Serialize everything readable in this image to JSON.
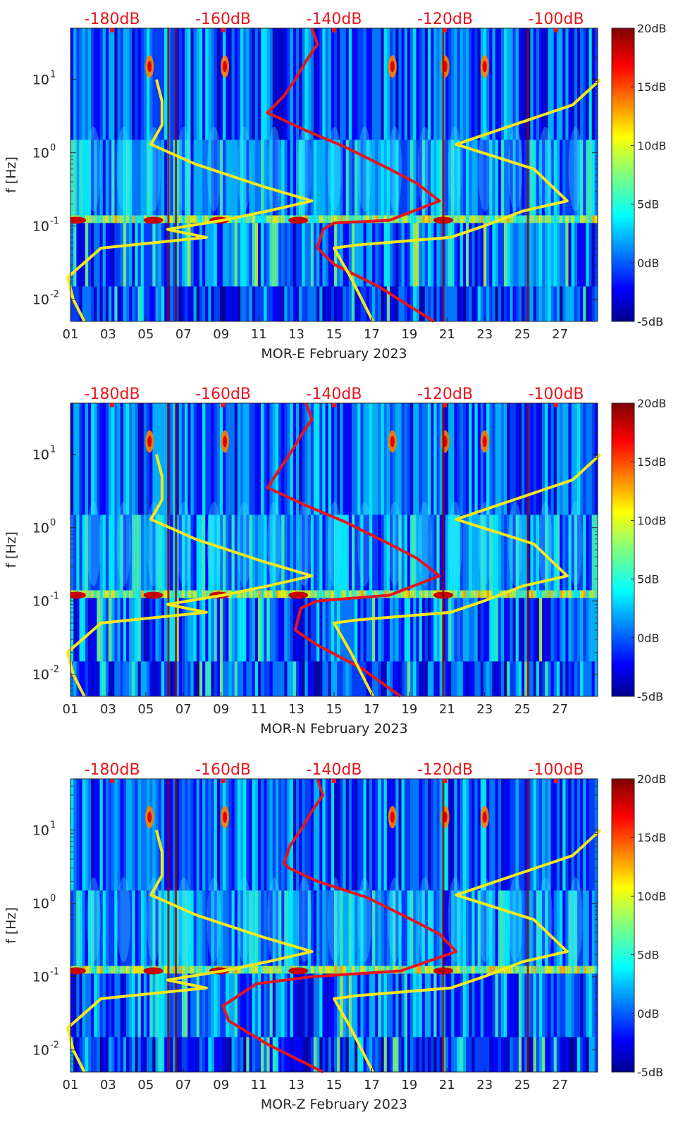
{
  "chart_data": [
    {
      "type": "heatmap",
      "title": "MOR-E February 2023",
      "xlabel": "MOR-E February 2023",
      "ylabel": "f [Hz]",
      "x_ticks": [
        "01",
        "03",
        "05",
        "07",
        "09",
        "11",
        "13",
        "15",
        "17",
        "19",
        "21",
        "23",
        "25",
        "27"
      ],
      "x_range_days": [
        1,
        29
      ],
      "y_scale": "log",
      "y_ticks": [
        0.01,
        0.1,
        1,
        10
      ],
      "y_range_hz": [
        0.005,
        50
      ],
      "top_axis_ticks": [
        "-180dB",
        "-160dB",
        "-140dB",
        "-120dB",
        "-100dB"
      ],
      "top_axis_range_db": [
        -187.5,
        -92.5
      ],
      "colorbar": {
        "label_ticks": [
          "20dB",
          "15dB",
          "10dB",
          "5dB",
          "0dB",
          "-5dB"
        ],
        "range_db": [
          -5,
          20
        ],
        "colormap": "jet"
      },
      "series": [
        {
          "name": "red PSD curve",
          "color": "#e8141c",
          "points_db_hz": [
            [
              -144,
              50
            ],
            [
              -143,
              30
            ],
            [
              -145,
              18
            ],
            [
              -147,
              10
            ],
            [
              -149,
              6
            ],
            [
              -152,
              3.5
            ],
            [
              -150,
              3
            ],
            [
              -145,
              2
            ],
            [
              -138,
              1.2
            ],
            [
              -130,
              0.6
            ],
            [
              -125,
              0.38
            ],
            [
              -121,
              0.22
            ],
            [
              -130,
              0.12
            ],
            [
              -140,
              0.11
            ],
            [
              -142,
              0.09
            ],
            [
              -143,
              0.05
            ],
            [
              -140,
              0.03
            ],
            [
              -132,
              0.015
            ],
            [
              -122,
              0.005
            ]
          ]
        },
        {
          "name": "yellow model curve 1",
          "color": "#f5e81c",
          "points_db_hz": [
            [
              -172,
              10
            ],
            [
              -171,
              5
            ],
            [
              -171,
              2.4
            ],
            [
              -173,
              1.3
            ],
            [
              -165,
              0.7
            ],
            [
              -153,
              0.35
            ],
            [
              -144,
              0.22
            ],
            [
              -152,
              0.16
            ],
            [
              -160,
              0.12
            ],
            [
              -170,
              0.09
            ],
            [
              -163,
              0.07
            ],
            [
              -182,
              0.05
            ],
            [
              -188,
              0.02
            ],
            [
              -187,
              0.01
            ],
            [
              -185,
              0.005
            ]
          ]
        },
        {
          "name": "yellow model curve 2",
          "color": "#f5e81c",
          "points_db_hz": [
            [
              -92,
              10
            ],
            [
              -97,
              4.5
            ],
            [
              -118,
              1.3
            ],
            [
              -104,
              0.6
            ],
            [
              -98,
              0.22
            ],
            [
              -106,
              0.16
            ],
            [
              -113,
              0.1
            ],
            [
              -119,
              0.07
            ],
            [
              -136,
              0.055
            ],
            [
              -140,
              0.05
            ],
            [
              -137,
              0.02
            ],
            [
              -133,
              0.005
            ]
          ]
        }
      ]
    },
    {
      "type": "heatmap",
      "title": "MOR-N February 2023",
      "xlabel": "MOR-N February 2023",
      "ylabel": "f [Hz]",
      "x_ticks": [
        "01",
        "03",
        "05",
        "07",
        "09",
        "11",
        "13",
        "15",
        "17",
        "19",
        "21",
        "23",
        "25",
        "27"
      ],
      "x_range_days": [
        1,
        29
      ],
      "y_scale": "log",
      "y_ticks": [
        0.01,
        0.1,
        1,
        10
      ],
      "y_range_hz": [
        0.005,
        50
      ],
      "top_axis_ticks": [
        "-180dB",
        "-160dB",
        "-140dB",
        "-120dB",
        "-100dB"
      ],
      "top_axis_range_db": [
        -187.5,
        -92.5
      ],
      "colorbar": {
        "label_ticks": [
          "20dB",
          "15dB",
          "10dB",
          "5dB",
          "0dB",
          "-5dB"
        ],
        "range_db": [
          -5,
          20
        ],
        "colormap": "jet"
      },
      "series": [
        {
          "name": "red PSD curve",
          "color": "#e8141c",
          "points_db_hz": [
            [
              -145,
              50
            ],
            [
              -144,
              30
            ],
            [
              -146,
              18
            ],
            [
              -148,
              10
            ],
            [
              -150,
              6
            ],
            [
              -152,
              3.5
            ],
            [
              -150,
              3
            ],
            [
              -145,
              2
            ],
            [
              -138,
              1.2
            ],
            [
              -130,
              0.6
            ],
            [
              -125,
              0.38
            ],
            [
              -121,
              0.22
            ],
            [
              -130,
              0.12
            ],
            [
              -143,
              0.1
            ],
            [
              -146,
              0.08
            ],
            [
              -147,
              0.04
            ],
            [
              -143,
              0.025
            ],
            [
              -135,
              0.012
            ],
            [
              -128,
              0.005
            ]
          ]
        },
        {
          "name": "yellow model curve 1",
          "color": "#f5e81c",
          "points_db_hz": [
            [
              -172,
              10
            ],
            [
              -171,
              5
            ],
            [
              -171,
              2.4
            ],
            [
              -173,
              1.3
            ],
            [
              -165,
              0.7
            ],
            [
              -153,
              0.35
            ],
            [
              -144,
              0.22
            ],
            [
              -152,
              0.16
            ],
            [
              -160,
              0.12
            ],
            [
              -170,
              0.09
            ],
            [
              -163,
              0.07
            ],
            [
              -182,
              0.05
            ],
            [
              -188,
              0.02
            ],
            [
              -187,
              0.01
            ],
            [
              -185,
              0.005
            ]
          ]
        },
        {
          "name": "yellow model curve 2",
          "color": "#f5e81c",
          "points_db_hz": [
            [
              -92,
              10
            ],
            [
              -97,
              4.5
            ],
            [
              -118,
              1.3
            ],
            [
              -104,
              0.6
            ],
            [
              -98,
              0.22
            ],
            [
              -106,
              0.16
            ],
            [
              -113,
              0.1
            ],
            [
              -119,
              0.07
            ],
            [
              -136,
              0.055
            ],
            [
              -140,
              0.05
            ],
            [
              -137,
              0.02
            ],
            [
              -133,
              0.005
            ]
          ]
        }
      ]
    },
    {
      "type": "heatmap",
      "title": "MOR-Z February 2023",
      "xlabel": "MOR-Z February 2023",
      "ylabel": "f [Hz]",
      "x_ticks": [
        "01",
        "03",
        "05",
        "07",
        "09",
        "11",
        "13",
        "15",
        "17",
        "19",
        "21",
        "23",
        "25",
        "27"
      ],
      "x_range_days": [
        1,
        29
      ],
      "y_scale": "log",
      "y_ticks": [
        0.01,
        0.1,
        1,
        10
      ],
      "y_range_hz": [
        0.005,
        50
      ],
      "top_axis_ticks": [
        "-180dB",
        "-160dB",
        "-140dB",
        "-120dB",
        "-100dB"
      ],
      "top_axis_range_db": [
        -187.5,
        -92.5
      ],
      "colorbar": {
        "label_ticks": [
          "20dB",
          "15dB",
          "10dB",
          "5dB",
          "0dB",
          "-5dB"
        ],
        "range_db": [
          -5,
          20
        ],
        "colormap": "jet"
      },
      "series": [
        {
          "name": "red PSD curve",
          "color": "#e8141c",
          "points_db_hz": [
            [
              -143,
              50
            ],
            [
              -142,
              30
            ],
            [
              -144,
              18
            ],
            [
              -146,
              10
            ],
            [
              -148,
              6
            ],
            [
              -149,
              3.5
            ],
            [
              -148,
              3
            ],
            [
              -143,
              2
            ],
            [
              -134,
              1.2
            ],
            [
              -126,
              0.6
            ],
            [
              -121,
              0.38
            ],
            [
              -118,
              0.22
            ],
            [
              -128,
              0.12
            ],
            [
              -144,
              0.1
            ],
            [
              -154,
              0.08
            ],
            [
              -160,
              0.04
            ],
            [
              -159,
              0.025
            ],
            [
              -152,
              0.012
            ],
            [
              -142,
              0.005
            ]
          ]
        },
        {
          "name": "yellow model curve 1",
          "color": "#f5e81c",
          "points_db_hz": [
            [
              -172,
              10
            ],
            [
              -171,
              5
            ],
            [
              -171,
              2.4
            ],
            [
              -173,
              1.3
            ],
            [
              -165,
              0.7
            ],
            [
              -153,
              0.35
            ],
            [
              -144,
              0.22
            ],
            [
              -152,
              0.16
            ],
            [
              -160,
              0.12
            ],
            [
              -170,
              0.09
            ],
            [
              -163,
              0.07
            ],
            [
              -182,
              0.05
            ],
            [
              -188,
              0.02
            ],
            [
              -187,
              0.01
            ],
            [
              -185,
              0.005
            ]
          ]
        },
        {
          "name": "yellow model curve 2",
          "color": "#f5e81c",
          "points_db_hz": [
            [
              -92,
              10
            ],
            [
              -97,
              4.5
            ],
            [
              -118,
              1.3
            ],
            [
              -104,
              0.6
            ],
            [
              -98,
              0.22
            ],
            [
              -106,
              0.16
            ],
            [
              -113,
              0.1
            ],
            [
              -119,
              0.07
            ],
            [
              -136,
              0.055
            ],
            [
              -140,
              0.05
            ],
            [
              -137,
              0.02
            ],
            [
              -133,
              0.005
            ]
          ]
        }
      ]
    }
  ]
}
